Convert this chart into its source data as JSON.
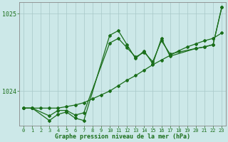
{
  "line_color": "#1a6e1a",
  "bg_color": "#cce8e8",
  "grid_color": "#a8c8c8",
  "xlabel": "Graphe pression niveau de la mer (hPa)",
  "ylim": [
    1023.55,
    1025.15
  ],
  "yticks": [
    1024.0,
    1025.0
  ],
  "ytick_labels": [
    "1024",
    "1025"
  ],
  "xlim": [
    -0.5,
    23.5
  ],
  "s1_x": [
    0,
    1,
    2,
    3,
    4,
    5,
    6,
    7,
    8,
    9,
    10,
    11,
    12,
    13,
    14,
    15,
    16,
    17,
    18,
    19,
    20,
    21,
    22,
    23
  ],
  "s1_y": [
    1023.78,
    1023.78,
    1023.78,
    1023.78,
    1023.78,
    1023.8,
    1023.82,
    1023.85,
    1023.9,
    1023.95,
    1024.0,
    1024.07,
    1024.14,
    1024.2,
    1024.27,
    1024.34,
    1024.4,
    1024.46,
    1024.52,
    1024.57,
    1024.61,
    1024.65,
    1024.68,
    1024.75
  ],
  "s2_x": [
    0,
    1,
    3,
    4,
    5,
    6,
    7,
    10,
    11,
    12,
    13,
    14,
    15,
    16,
    17,
    20,
    21,
    22,
    23
  ],
  "s2_y": [
    1023.78,
    1023.78,
    1023.62,
    1023.7,
    1023.73,
    1023.65,
    1023.62,
    1024.72,
    1024.78,
    1024.6,
    1024.42,
    1024.52,
    1024.35,
    1024.68,
    1024.45,
    1024.55,
    1024.57,
    1024.6,
    1025.08
  ],
  "s3_x": [
    0,
    1,
    3,
    4,
    5,
    6,
    7,
    10,
    11,
    12,
    13,
    14,
    15,
    16,
    17,
    20,
    21,
    22,
    23
  ],
  "s3_y": [
    1023.78,
    1023.78,
    1023.68,
    1023.75,
    1023.75,
    1023.69,
    1023.72,
    1024.62,
    1024.68,
    1024.56,
    1024.44,
    1024.5,
    1024.38,
    1024.65,
    1024.48,
    1024.55,
    1024.57,
    1024.6,
    1025.08
  ]
}
